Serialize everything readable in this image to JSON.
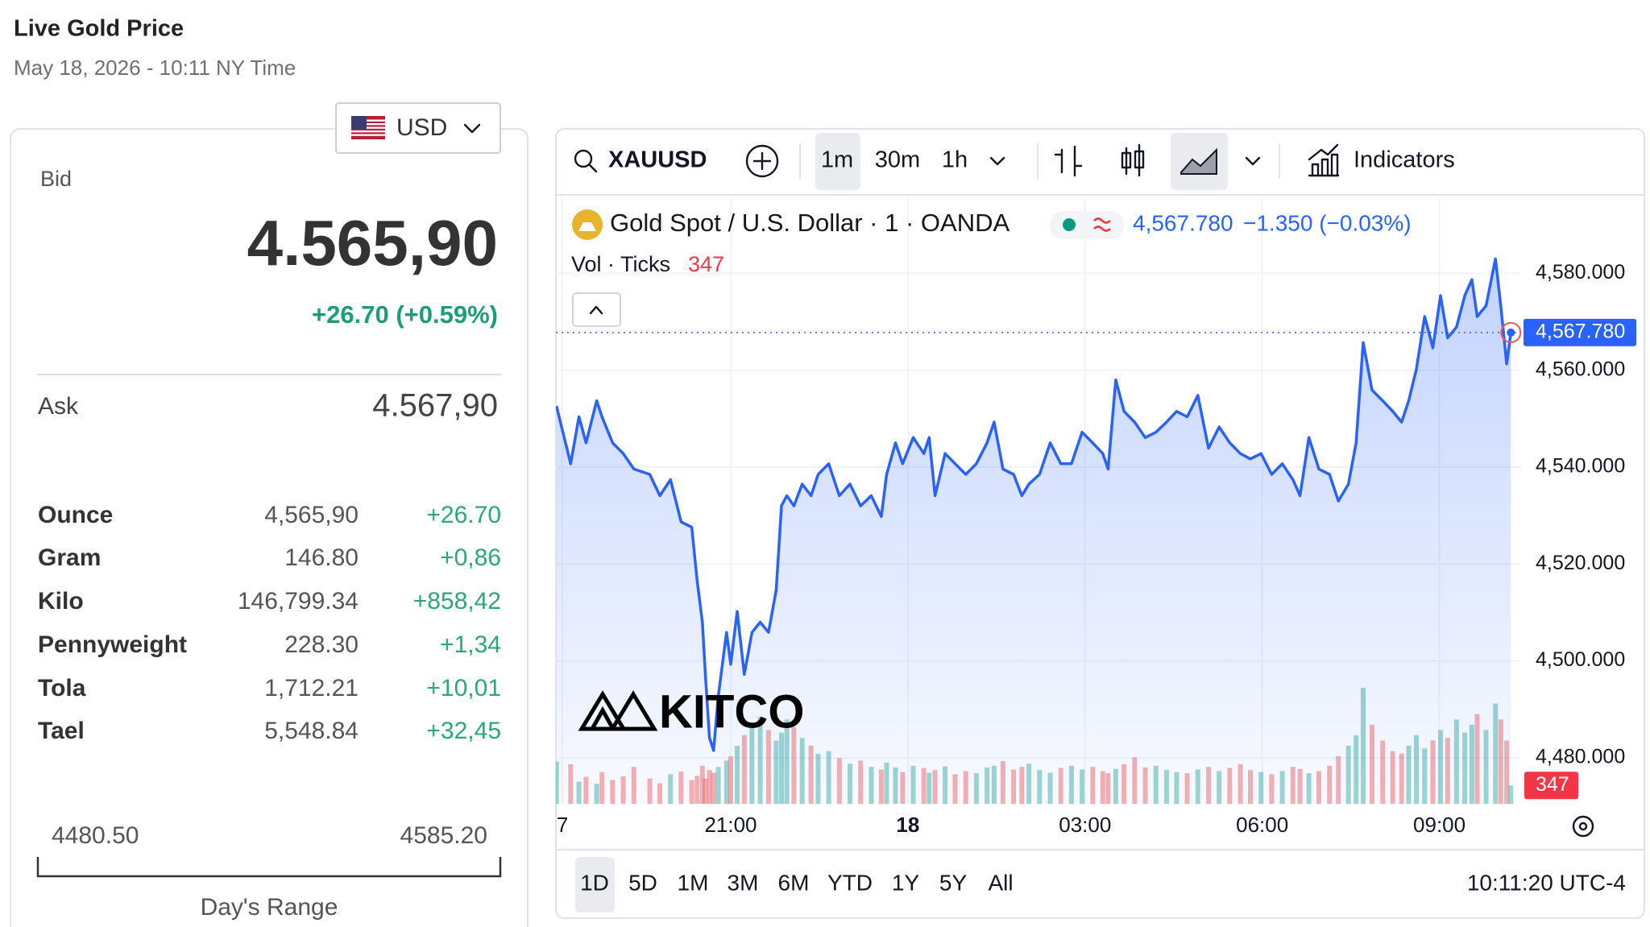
{
  "header": {
    "title": "Live Gold Price",
    "timestamp": "May 18, 2026 - 10:11 NY Time"
  },
  "currency": "USD",
  "quote": {
    "bid_label": "Bid",
    "bid": "4.565,90",
    "change": "+26.70 (+0.59%)",
    "ask_label": "Ask",
    "ask": "4.567,90"
  },
  "units": [
    {
      "name": "Ounce",
      "price": "4,565,90",
      "change": "+26.70"
    },
    {
      "name": "Gram",
      "price": "146.80",
      "change": "+0,86"
    },
    {
      "name": "Kilo",
      "price": "146,799.34",
      "change": "+858,42"
    },
    {
      "name": "Pennyweight",
      "price": "228.30",
      "change": "+1,34"
    },
    {
      "name": "Tola",
      "price": "1,712.21",
      "change": "+10,01"
    },
    {
      "name": "Tael",
      "price": "5,548.84",
      "change": "+32,45"
    }
  ],
  "day_range": {
    "low": "4480.50",
    "high": "4585.20",
    "label": "Day's Range"
  },
  "toolbar": {
    "symbol": "XAUUSD",
    "intervals": [
      "1m",
      "30m",
      "1h"
    ],
    "indicators": "Indicators"
  },
  "watermark": "KITCO",
  "ranges": [
    "1D",
    "5D",
    "1M",
    "3M",
    "6M",
    "YTD",
    "1Y",
    "5Y",
    "All"
  ],
  "clock": "10:11:20 UTC-4",
  "chart_data": {
    "type": "line",
    "x": [
      18.05,
      18.29,
      18.43,
      18.55,
      18.73,
      18.82,
      19.0,
      19.18,
      19.36,
      19.63,
      19.8,
      19.98,
      20.16,
      20.34,
      20.43,
      20.52,
      20.57,
      20.64,
      20.71,
      20.79,
      20.93,
      21.0,
      21.11,
      21.23,
      21.36,
      21.5,
      21.64,
      21.77,
      21.86,
      21.95,
      22.07,
      22.21,
      22.36,
      22.48,
      22.66,
      22.84,
      23.02,
      23.2,
      23.38,
      23.55,
      23.64,
      23.79,
      23.91,
      24.09,
      24.27,
      24.36,
      24.46,
      24.63,
      24.8,
      24.98,
      25.16,
      25.34,
      25.46,
      25.61,
      25.79,
      25.93,
      26.05,
      26.23,
      26.41,
      26.59,
      26.77,
      26.95,
      27.13,
      27.3,
      27.39,
      27.52,
      27.66,
      27.84,
      28.02,
      28.2,
      28.38,
      28.55,
      28.73,
      28.91,
      29.09,
      29.27,
      29.45,
      29.63,
      29.8,
      29.98,
      30.16,
      30.34,
      30.52,
      30.64,
      30.79,
      30.96,
      31.14,
      31.29,
      31.46,
      31.59,
      31.71,
      31.86,
      32.04,
      32.21,
      32.36,
      32.48,
      32.61,
      32.75,
      32.89,
      33.02,
      33.14,
      33.29,
      33.43,
      33.55,
      33.64,
      33.79,
      33.95,
      34.04,
      34.14,
      34.21
    ],
    "series": [
      {
        "name": "Gold Spot / U.S. Dollar · 1 · OANDA",
        "color": "#2962ff",
        "values": [
          4552.6,
          4540.7,
          4550.4,
          4545,
          4553.7,
          4550.4,
          4545,
          4542.8,
          4539.6,
          4538.5,
          4534.1,
          4537.4,
          4528.7,
          4527.6,
          4516.7,
          4508,
          4497.2,
          4484.1,
          4481.5,
          4492.8,
          4505.9,
          4499.3,
          4510.2,
          4497.2,
          4505.9,
          4508,
          4505.9,
          4514.6,
          4532,
          4534.1,
          4532,
          4536.5,
          4534.1,
          4538.5,
          4540.7,
          4534.1,
          4536.5,
          4532,
          4534.1,
          4529.8,
          4538.5,
          4545,
          4540.7,
          4546.1,
          4542.8,
          4546.1,
          4534.1,
          4542.8,
          4540.7,
          4538.5,
          4540.7,
          4545,
          4549.3,
          4539.6,
          4538.5,
          4534.1,
          4536.5,
          4538.5,
          4545,
          4540.7,
          4540.7,
          4547.2,
          4545,
          4542.8,
          4539.6,
          4558,
          4551.5,
          4549.3,
          4546.1,
          4547.2,
          4549.3,
          4551.5,
          4550.4,
          4554.8,
          4543.9,
          4548.3,
          4545,
          4542.8,
          4541.7,
          4542.8,
          4538.5,
          4540.7,
          4537.4,
          4534.1,
          4546.1,
          4539.6,
          4538.5,
          4533,
          4536.5,
          4545,
          4565.7,
          4555.9,
          4553.7,
          4551.5,
          4549.3,
          4553.7,
          4560.2,
          4571.1,
          4564.6,
          4575.4,
          4566.7,
          4568.9,
          4575.4,
          4578.7,
          4571.1,
          4573.3,
          4583,
          4573.3,
          4561.3,
          4567.78
        ]
      },
      {
        "name": "Vol · Ticks",
        "axis": "y2",
        "up_color": "#26a69a",
        "down_color": "#ef5350",
        "values": [
          800,
          750,
          420,
          510,
          380,
          600,
          450,
          520,
          700,
          480,
          390,
          560,
          610,
          450,
          530,
          720,
          480,
          640,
          590,
          700,
          820,
          900,
          1100,
          1300,
          1500,
          1650,
          1400,
          1200,
          1350,
          1600,
          1450,
          1250,
          1100,
          950,
          1000,
          870,
          760,
          820,
          700,
          650,
          780,
          690,
          600,
          720,
          680,
          590,
          640,
          710,
          560,
          620,
          580,
          690,
          720,
          810,
          650,
          700,
          760,
          640,
          590,
          680,
          720,
          650,
          700,
          620,
          580,
          660,
          750,
          880,
          690,
          720,
          640,
          600,
          580,
          650,
          700,
          620,
          680,
          750,
          640,
          600,
          560,
          620,
          700,
          660,
          580,
          620,
          720,
          900,
          1100,
          1300,
          2200,
          1500,
          1200,
          1000,
          950,
          1100,
          1300,
          1050,
          1200,
          1400,
          1250,
          1600,
          1350,
          1500,
          1700,
          1400,
          1900,
          1600,
          1200,
          347
        ]
      }
    ],
    "last_price_label": "4,567.780",
    "change_label": "−1.350 (−0.03%)",
    "xlim": [
      18.04,
      34.37
    ],
    "xticks": [
      {
        "value": 18.15,
        "label": "7"
      },
      {
        "value": 21,
        "label": "21:00"
      },
      {
        "value": 24,
        "label": "18"
      },
      {
        "value": 27,
        "label": "03:00"
      },
      {
        "value": 30,
        "label": "06:00"
      },
      {
        "value": 33,
        "label": "09:00"
      }
    ],
    "ylim": [
      4470.5,
      4595.7
    ],
    "yticks": [
      {
        "value": 4480,
        "label": "4,480.000"
      },
      {
        "value": 4500,
        "label": "4,500.000"
      },
      {
        "value": 4520,
        "label": "4,520.000"
      },
      {
        "value": 4540,
        "label": "4,540.000"
      },
      {
        "value": 4560,
        "label": "4,560.000"
      },
      {
        "value": 4580,
        "label": "4,580.000"
      }
    ],
    "y2lim": [
      0,
      11500
    ],
    "grid": true
  }
}
